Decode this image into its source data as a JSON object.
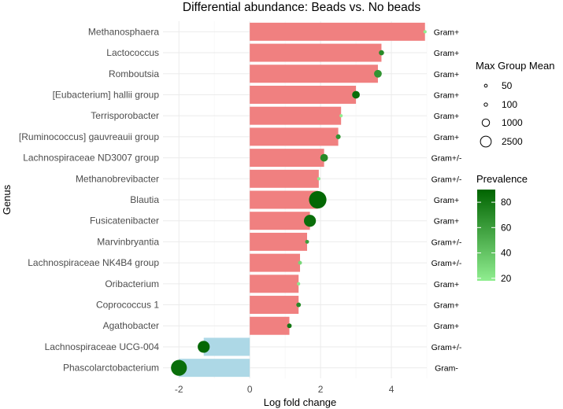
{
  "chart_data": {
    "type": "bar",
    "orientation": "horizontal",
    "title": "Differential abundance: Beads vs. No beads",
    "xlabel": "Log fold change",
    "ylabel": "Genus",
    "xlim": [
      -2.45,
      5.0
    ],
    "xticks": [
      -2,
      0,
      2,
      4
    ],
    "grid": true,
    "colors": {
      "positive_bar": "#f08080",
      "negative_bar": "#add8e6",
      "prevalence_low": "#90ee90",
      "prevalence_high": "#006400"
    },
    "categories": [
      "Methanosphaera",
      "Lactococcus",
      "Romboutsia",
      "[Eubacterium] hallii group",
      "Terrisporobacter",
      "[Ruminococcus] gauvreauii group",
      "Lachnospiraceae ND3007 group",
      "Methanobrevibacter",
      "Blautia",
      "Fusicatenibacter",
      "Marvinbryantia",
      "Lachnospiraceae NK4B4 group",
      "Oribacterium",
      "Coprococcus 1",
      "Agathobacter",
      "Lachnospiraceae UCG-004",
      "Phascolarctobacterium"
    ],
    "values": [
      4.95,
      3.72,
      3.62,
      3.0,
      2.58,
      2.5,
      2.1,
      1.95,
      1.92,
      1.7,
      1.62,
      1.42,
      1.38,
      1.38,
      1.12,
      -1.3,
      -2.0
    ],
    "max_group_mean": [
      5,
      80,
      300,
      300,
      5,
      60,
      300,
      5,
      2500,
      1000,
      20,
      20,
      5,
      50,
      50,
      1000,
      2000
    ],
    "prevalence": [
      15,
      70,
      65,
      85,
      15,
      65,
      70,
      20,
      88,
      85,
      60,
      30,
      20,
      70,
      80,
      88,
      85
    ],
    "gram": [
      "Gram+",
      "Gram+",
      "Gram+",
      "Gram+",
      "Gram+",
      "Gram+",
      "Gram+/-",
      "Gram+/-",
      "Gram+",
      "Gram+",
      "Gram+/-",
      "Gram+/-",
      "Gram+",
      "Gram+",
      "Gram+",
      "Gram+/-",
      "Gram-"
    ],
    "legend": {
      "size_title": "Max Group Mean",
      "size_values": [
        50,
        100,
        1000,
        2500
      ],
      "color_title": "Prevalence",
      "color_ticks": [
        20,
        40,
        60,
        80
      ],
      "color_range": [
        18,
        90
      ],
      "placement": "right"
    }
  }
}
